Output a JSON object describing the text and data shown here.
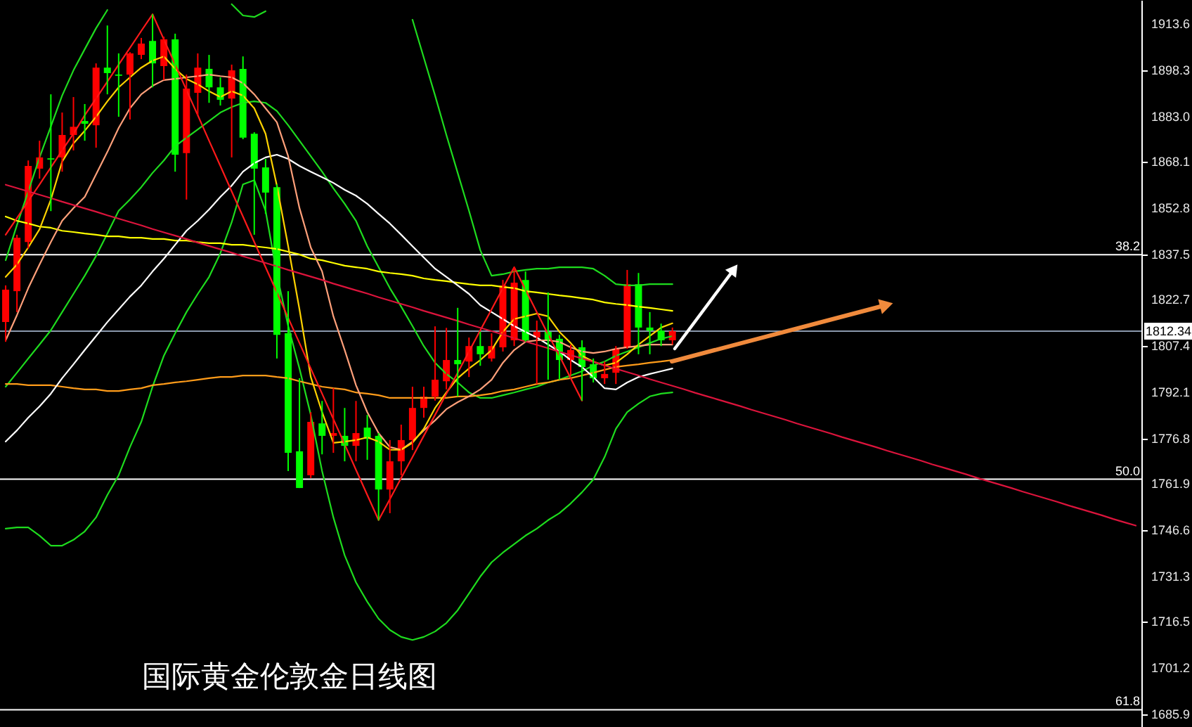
{
  "chart_data": {
    "type": "candlestick",
    "title": "国际黄金伦敦金日线图",
    "categories": [
      null,
      null,
      null,
      null,
      null,
      null,
      null,
      null,
      null,
      null,
      null,
      null,
      null,
      null,
      null,
      null,
      null,
      null,
      null,
      null,
      null,
      null,
      null,
      null,
      null,
      null,
      null,
      null,
      null,
      null,
      null,
      null,
      null,
      null,
      null,
      null,
      null,
      null,
      null,
      null,
      null,
      null,
      null,
      null,
      null,
      null,
      null,
      null,
      null,
      null,
      null,
      null,
      null,
      null,
      null,
      null,
      null,
      null,
      null,
      null,
      null,
      null,
      null,
      null,
      null,
      null,
      null,
      null,
      null,
      null,
      null,
      null,
      null,
      null,
      null,
      null,
      null,
      null,
      null,
      null,
      null,
      null,
      null,
      null,
      null,
      null,
      null,
      null,
      null,
      null,
      null,
      null,
      null,
      null,
      null,
      null,
      null,
      null,
      null,
      null,
      null
    ],
    "ohlc": [
      [
        1815.3,
        1827.4,
        1808.8,
        1826.0
      ],
      [
        1825.5,
        1844.1,
        1818.6,
        1843.1
      ],
      [
        1841.7,
        1868.6,
        1839.5,
        1866.8
      ],
      [
        1865.9,
        1875.1,
        1862.6,
        1869.6
      ],
      [
        1869.3,
        1890.4,
        1851.9,
        1868.9
      ],
      [
        1869.6,
        1884.4,
        1864.9,
        1877.0
      ],
      [
        1877.0,
        1889.5,
        1871.9,
        1879.7
      ],
      [
        1881.6,
        1887.2,
        1875.1,
        1880.7
      ],
      [
        1880.2,
        1900.6,
        1872.8,
        1899.2
      ],
      [
        1899.2,
        1913.1,
        1890.4,
        1897.4
      ],
      [
        1896.9,
        1903.9,
        1883.0,
        1896.5
      ],
      [
        1896.9,
        1904.3,
        1882.1,
        1903.9
      ],
      [
        1903.4,
        1909.0,
        1902.0,
        1907.1
      ],
      [
        1908.0,
        1916.8,
        1892.7,
        1900.6
      ],
      [
        1899.7,
        1909.4,
        1895.1,
        1908.5
      ],
      [
        1908.5,
        1910.4,
        1864.9,
        1870.5
      ],
      [
        1871.0,
        1896.9,
        1855.7,
        1892.3
      ],
      [
        1890.9,
        1903.9,
        1883.5,
        1899.2
      ],
      [
        1898.8,
        1903.4,
        1887.6,
        1892.7
      ],
      [
        1892.7,
        1896.0,
        1886.7,
        1888.6
      ],
      [
        1889.0,
        1900.2,
        1869.6,
        1898.3
      ],
      [
        1898.8,
        1902.9,
        1875.6,
        1876.1
      ],
      [
        1877.4,
        1877.9,
        1844.1,
        1865.9
      ],
      [
        1866.3,
        1869.1,
        1851.0,
        1858.0
      ],
      [
        1859.8,
        1860.7,
        1803.3,
        1811.1
      ],
      [
        1811.6,
        1825.5,
        1766.2,
        1772.2
      ],
      [
        1772.7,
        1796.8,
        1760.6,
        1760.6
      ],
      [
        1764.8,
        1785.6,
        1763.9,
        1782.4
      ],
      [
        1781.9,
        1789.3,
        1771.7,
        1777.8
      ],
      [
        1777.8,
        1793.5,
        1772.2,
        1778.7
      ],
      [
        1777.8,
        1787.0,
        1769.4,
        1774.5
      ],
      [
        1774.5,
        1789.3,
        1769.4,
        1778.7
      ],
      [
        1780.5,
        1784.7,
        1769.9,
        1776.8
      ],
      [
        1777.8,
        1778.7,
        1749.9,
        1760.1
      ],
      [
        1760.1,
        1776.4,
        1752.3,
        1769.4
      ],
      [
        1769.4,
        1781.5,
        1764.8,
        1776.4
      ],
      [
        1776.4,
        1794.0,
        1773.1,
        1787.0
      ],
      [
        1787.0,
        1794.0,
        1783.8,
        1790.7
      ],
      [
        1790.7,
        1813.9,
        1789.4,
        1796.3
      ],
      [
        1795.8,
        1813.4,
        1793.1,
        1802.8
      ],
      [
        1802.8,
        1820.0,
        1790.8,
        1801.4
      ],
      [
        1802.3,
        1810.2,
        1797.2,
        1807.4
      ],
      [
        1807.4,
        1812.1,
        1800.9,
        1804.7
      ],
      [
        1803.3,
        1811.6,
        1802.3,
        1807.4
      ],
      [
        1807.0,
        1829.2,
        1805.6,
        1827.4
      ],
      [
        1809.3,
        1833.4,
        1807.4,
        1828.3
      ],
      [
        1829.2,
        1832.0,
        1808.8,
        1809.3
      ],
      [
        1810.2,
        1815.8,
        1794.9,
        1812.1
      ],
      [
        1812.1,
        1825.1,
        1796.3,
        1809.3
      ],
      [
        1809.8,
        1811.1,
        1796.3,
        1802.8
      ],
      [
        1802.8,
        1807.9,
        1797.7,
        1806.1
      ],
      [
        1807.0,
        1809.3,
        1789.4,
        1800.5
      ],
      [
        1801.4,
        1803.3,
        1795.4,
        1796.8
      ],
      [
        1796.8,
        1802.3,
        1794.9,
        1798.2
      ],
      [
        1798.6,
        1807.4,
        1794.9,
        1806.5
      ],
      [
        1807.0,
        1832.5,
        1806.5,
        1827.8
      ],
      [
        1827.8,
        1831.5,
        1804.7,
        1813.5
      ],
      [
        1813.5,
        1818.6,
        1804.7,
        1812.5
      ],
      [
        1812.5,
        1814.8,
        1807.4,
        1809.3
      ],
      [
        1809.3,
        1813.5,
        1807.9,
        1812.3
      ],
      null,
      null,
      null,
      null,
      null,
      null,
      null,
      null,
      null,
      null,
      null,
      null,
      null,
      null,
      null,
      null,
      null,
      null,
      null,
      null,
      null,
      null,
      null,
      null,
      null,
      null,
      null,
      null,
      null,
      null,
      null,
      null,
      null,
      null,
      null,
      null,
      null,
      null,
      null,
      null,
      null
    ],
    "colors": [
      "#ff0000",
      "#ff0000",
      "#ff0000",
      "#ff0000",
      "#00ff00",
      "#ff0000",
      "#ff0000",
      "#00ff00",
      "#ff0000",
      "#00ff00",
      "#00ff00",
      "#ff0000",
      "#ff0000",
      "#00ff00",
      "#ff0000",
      "#00ff00",
      "#ff0000",
      "#ff0000",
      "#00ff00",
      "#00ff00",
      "#ff0000",
      "#00ff00",
      "#00ff00",
      "#00ff00",
      "#00ff00",
      "#00ff00",
      "#00ff00",
      "#ff0000",
      "#00ff00",
      "#ff0000",
      "#00ff00",
      "#ff0000",
      "#00ff00",
      "#00ff00",
      "#ff0000",
      "#ff0000",
      "#ff0000",
      "#ff0000",
      "#ff0000",
      "#ff0000",
      "#00ff00",
      "#ff0000",
      "#00ff00",
      "#ff0000",
      "#ff0000",
      "#ff0000",
      "#00ff00",
      "#ff0000",
      "#00ff00",
      "#00ff00",
      "#ff0000",
      "#00ff00",
      "#00ff00",
      "#ff0000",
      "#ff0000",
      "#ff0000",
      "#00ff00",
      "#00ff00",
      "#00ff00",
      "#ff0000",
      null,
      null,
      null,
      null,
      null,
      null,
      null,
      null,
      null,
      null,
      null,
      null,
      null,
      null,
      null,
      null,
      null,
      null,
      null,
      null,
      null,
      null,
      null,
      null,
      null,
      null,
      null,
      null,
      null,
      null,
      null,
      null,
      null,
      null,
      null,
      null,
      null,
      null,
      null,
      null,
      null
    ],
    "series": [
      {
        "type": "line",
        "color": "#1edc1e",
        "values": [
          1835.7,
          1847.3,
          1858.4,
          1869.6,
          1879.8,
          1890.0,
          1898.3,
          1905.3,
          1912.2,
          1918.2,
          null,
          null,
          null,
          null,
          null,
          null,
          null,
          null,
          null,
          null,
          1920.1,
          1916.4,
          1915.9,
          1917.8,
          null,
          null,
          null,
          null,
          null,
          null,
          null,
          null,
          null,
          null,
          null,
          null,
          1915.0,
          1902.5,
          1890.0,
          1877.0,
          1864.5,
          1852.0,
          1839.0,
          1830.6,
          1831.1,
          1832.0,
          1832.5,
          1832.9,
          1832.9,
          1833.4,
          1833.4,
          1833.4,
          1832.9,
          1830.6,
          1827.8,
          1827.4,
          1827.4,
          1827.8,
          1827.8,
          1827.8,
          null,
          null,
          null,
          null,
          null,
          null,
          null,
          null,
          null,
          null,
          null,
          null,
          null,
          null,
          null,
          null,
          null,
          null,
          null,
          null,
          null,
          null,
          null,
          null,
          null,
          null,
          null,
          null,
          null,
          null,
          null,
          null,
          null,
          null,
          null,
          null,
          null,
          null,
          null,
          null,
          null
        ]
      },
      {
        "type": "line",
        "color": "#1edc1e",
        "values": [
          1794.0,
          1798.6,
          1803.3,
          1807.9,
          1812.6,
          1818.6,
          1824.6,
          1830.6,
          1837.1,
          1844.5,
          1852.0,
          1855.7,
          1859.8,
          1864.5,
          1868.6,
          1873.3,
          1876.1,
          1878.8,
          1881.6,
          1884.4,
          1886.2,
          1887.6,
          1888.1,
          1887.6,
          1884.9,
          1880.2,
          1875.1,
          1870.0,
          1864.9,
          1859.4,
          1854.3,
          1848.7,
          1840.3,
          1833.4,
          1826.5,
          1820.4,
          1814.0,
          1807.4,
          1801.9,
          1798.2,
          1795.4,
          1792.1,
          1790.3,
          1790.3,
          1791.2,
          1792.1,
          1793.1,
          1794.0,
          1795.4,
          1796.3,
          1797.7,
          1799.1,
          1801.0,
          1802.3,
          1804.2,
          1805.6,
          1807.0,
          1808.4,
          1809.8,
          1810.7,
          null,
          null,
          null,
          null,
          null,
          null,
          null,
          null,
          null,
          null,
          null,
          null,
          null,
          null,
          null,
          null,
          null,
          null,
          null,
          null,
          null,
          null,
          null,
          null,
          null,
          null,
          null,
          null,
          null,
          null,
          null,
          null,
          null,
          null,
          null,
          null,
          null,
          null,
          null,
          null,
          null
        ]
      },
      {
        "type": "line",
        "color": "#1edc1e",
        "values": [
          1747.2,
          1747.6,
          1747.6,
          1744.9,
          1741.6,
          1741.6,
          1743.5,
          1746.3,
          1750.9,
          1758.3,
          1764.8,
          1774.1,
          1782.4,
          1794.0,
          1804.2,
          1811.6,
          1818.6,
          1824.6,
          1830.2,
          1838.0,
          1848.2,
          1860.7,
          1862.1,
          1852.0,
          1831.1,
          1814.0,
          1800.0,
          1784.7,
          1766.2,
          1750.9,
          1738.4,
          1729.5,
          1723.1,
          1717.5,
          1713.8,
          1711.5,
          1710.5,
          1711.5,
          1713.3,
          1716.1,
          1720.3,
          1725.8,
          1731.4,
          1736.1,
          1739.3,
          1742.1,
          1744.9,
          1747.2,
          1750.0,
          1752.3,
          1755.5,
          1759.2,
          1763.4,
          1770.8,
          1780.1,
          1785.6,
          1788.4,
          1790.8,
          1791.7,
          1792.1,
          null,
          null,
          null,
          null,
          null,
          null,
          null,
          null,
          null,
          null,
          null,
          null,
          null,
          null,
          null,
          null,
          null,
          null,
          null,
          null,
          null,
          null,
          null,
          null,
          null,
          null,
          null,
          null,
          null,
          null,
          null,
          null,
          null,
          null,
          null,
          null,
          null,
          null,
          null,
          null,
          null
        ]
      },
      {
        "type": "line",
        "color": "#ff9c1a",
        "values": [
          1794.9,
          1794.9,
          1794.5,
          1794.5,
          1794.5,
          1794.0,
          1793.5,
          1793.1,
          1793.1,
          1792.6,
          1792.6,
          1793.1,
          1793.5,
          1794.5,
          1794.9,
          1795.4,
          1795.8,
          1796.3,
          1796.8,
          1797.2,
          1797.2,
          1797.7,
          1797.7,
          1797.7,
          1797.2,
          1796.8,
          1795.8,
          1794.9,
          1794.0,
          1793.5,
          1793.1,
          1792.1,
          1791.7,
          1791.2,
          1790.3,
          1790.3,
          1790.3,
          1790.3,
          1790.3,
          1790.3,
          1790.8,
          1790.8,
          1791.2,
          1791.7,
          1792.6,
          1793.1,
          1794.0,
          1794.9,
          1795.4,
          1796.3,
          1796.8,
          1797.7,
          1798.6,
          1799.6,
          1800.5,
          1801.0,
          1801.4,
          1801.9,
          1802.3,
          1802.8,
          null,
          null,
          null,
          null,
          null,
          null,
          null,
          null,
          null,
          null,
          null,
          null,
          null,
          null,
          null,
          null,
          null,
          null,
          null,
          null,
          null,
          null,
          null,
          null,
          null,
          null,
          null,
          null,
          null,
          null,
          null,
          null,
          null,
          null,
          null,
          null,
          null,
          null,
          null,
          null,
          null
        ]
      },
      {
        "type": "line",
        "color": "#ffff00",
        "values": [
          1850.1,
          1848.7,
          1847.8,
          1846.8,
          1846.4,
          1845.4,
          1845.0,
          1844.5,
          1844.1,
          1843.6,
          1843.6,
          1843.1,
          1843.1,
          1842.7,
          1842.7,
          1842.2,
          1842.2,
          1841.7,
          1841.3,
          1841.3,
          1840.8,
          1840.8,
          1840.3,
          1839.9,
          1839.4,
          1838.5,
          1837.6,
          1836.2,
          1835.7,
          1834.8,
          1833.9,
          1833.4,
          1832.9,
          1832.0,
          1831.5,
          1831.1,
          1830.6,
          1829.7,
          1829.2,
          1828.8,
          1828.3,
          1827.8,
          1827.4,
          1827.4,
          1826.9,
          1826.5,
          1825.5,
          1825.1,
          1824.6,
          1824.1,
          1823.7,
          1823.2,
          1822.7,
          1821.8,
          1821.3,
          1820.9,
          1820.4,
          1820.0,
          1819.5,
          1819.0,
          null,
          null,
          null,
          null,
          null,
          null,
          null,
          null,
          null,
          null,
          null,
          null,
          null,
          null,
          null,
          null,
          null,
          null,
          null,
          null,
          null,
          null,
          null,
          null,
          null,
          null,
          null,
          null,
          null,
          null,
          null,
          null,
          null,
          null,
          null,
          null,
          null,
          null,
          null,
          null,
          null
        ]
      },
      {
        "type": "line",
        "color": "#ffffff",
        "values": [
          1775.9,
          1779.6,
          1783.8,
          1787.5,
          1791.7,
          1796.8,
          1801.4,
          1806.1,
          1810.7,
          1815.3,
          1819.5,
          1823.7,
          1827.4,
          1832.0,
          1836.2,
          1840.8,
          1845.4,
          1848.7,
          1852.4,
          1856.6,
          1860.3,
          1864.9,
          1867.7,
          1869.6,
          1870.5,
          1869.1,
          1866.8,
          1864.9,
          1863.1,
          1861.2,
          1858.9,
          1857.0,
          1854.3,
          1851.0,
          1847.8,
          1844.1,
          1840.3,
          1836.6,
          1832.9,
          1830.2,
          1827.4,
          1824.6,
          1820.9,
          1818.6,
          1816.3,
          1814.0,
          1812.1,
          1810.2,
          1807.9,
          1805.6,
          1802.8,
          1800.5,
          1797.2,
          1793.5,
          1793.1,
          1795.4,
          1797.2,
          1798.2,
          1799.1,
          1800.0,
          null,
          null,
          null,
          null,
          null,
          null,
          null,
          null,
          null,
          null,
          null,
          null,
          null,
          null,
          null,
          null,
          null,
          null,
          null,
          null,
          null,
          null,
          null,
          null,
          null,
          null,
          null,
          null,
          null,
          null,
          null,
          null,
          null,
          null,
          null,
          null,
          null,
          null,
          null,
          null,
          null
        ]
      },
      {
        "type": "line",
        "color": "#ffa07a",
        "values": [
          1809.3,
          1817.6,
          1826.5,
          1834.3,
          1841.7,
          1848.7,
          1852.9,
          1856.6,
          1864.0,
          1871.4,
          1879.3,
          1885.8,
          1890.4,
          1893.2,
          1895.1,
          1895.5,
          1896.0,
          1896.4,
          1896.9,
          1896.4,
          1896.0,
          1894.1,
          1890.4,
          1885.8,
          1881.2,
          1870.0,
          1852.9,
          1839.9,
          1832.0,
          1817.2,
          1806.1,
          1794.5,
          1785.6,
          1778.7,
          1774.1,
          1773.2,
          1775.9,
          1779.6,
          1782.9,
          1786.6,
          1788.9,
          1790.8,
          1793.1,
          1796.3,
          1801.9,
          1806.1,
          1808.8,
          1809.3,
          1809.3,
          1808.8,
          1807.0,
          1805.6,
          1805.1,
          1805.6,
          1806.5,
          1807.0,
          1807.4,
          1807.9,
          1807.9,
          1807.9,
          null,
          null,
          null,
          null,
          null,
          null,
          null,
          null,
          null,
          null,
          null,
          null,
          null,
          null,
          null,
          null,
          null,
          null,
          null,
          null,
          null,
          null,
          null,
          null,
          null,
          null,
          null,
          null,
          null,
          null,
          null,
          null,
          null,
          null,
          null,
          null,
          null,
          null,
          null,
          null,
          null
        ]
      },
      {
        "type": "line",
        "color": "#ffd200",
        "values": [
          1830.2,
          1834.3,
          1839.9,
          1845.9,
          1855.7,
          1868.2,
          1874.2,
          1878.4,
          1883.0,
          1888.1,
          1892.7,
          1896.0,
          1899.2,
          1901.5,
          1902.9,
          1898.8,
          1895.5,
          1893.7,
          1891.4,
          1889.5,
          1891.4,
          1890.0,
          1885.8,
          1877.4,
          1860.3,
          1840.3,
          1819.5,
          1797.2,
          1785.6,
          1775.5,
          1775.9,
          1776.4,
          1777.3,
          1775.9,
          1773.2,
          1773.2,
          1775.5,
          1780.1,
          1787.0,
          1792.1,
          1796.8,
          1800.0,
          1802.8,
          1806.1,
          1812.1,
          1816.3,
          1817.2,
          1818.1,
          1817.2,
          1812.1,
          1808.4,
          1804.2,
          1802.3,
          1801.0,
          1801.9,
          1804.7,
          1807.9,
          1810.7,
          1813.5,
          1814.9,
          null,
          null,
          null,
          null,
          null,
          null,
          null,
          null,
          null,
          null,
          null,
          null,
          null,
          null,
          null,
          null,
          null,
          null,
          null,
          null,
          null,
          null,
          null,
          null,
          null,
          null,
          null,
          null,
          null,
          null,
          null,
          null,
          null,
          null,
          null,
          null,
          null,
          null,
          null,
          null,
          null
        ]
      },
      {
        "type": "line",
        "color": "#ff1a1a",
        "values": [
          1844.1,
          1849.6,
          1855.2,
          1860.7,
          1866.3,
          1871.9,
          1877.4,
          1883.5,
          1889.0,
          1894.6,
          1900.2,
          1905.7,
          1911.3,
          1916.8,
          1908.5,
          1900.2,
          1891.8,
          1883.5,
          1875.1,
          1866.8,
          1858.4,
          1850.1,
          1841.7,
          1833.4,
          1825.1,
          1816.7,
          1808.4,
          1800.0,
          1791.7,
          1783.3,
          1775.0,
          1766.6,
          1758.3,
          1750.0,
          1756.9,
          1763.9,
          1770.8,
          1777.8,
          1784.7,
          1791.7,
          1798.6,
          1805.6,
          1812.6,
          1819.5,
          1826.5,
          1833.4,
          1826.0,
          1818.6,
          1811.2,
          1804.2,
          1796.8,
          1789.4,
          null,
          null,
          null,
          null,
          null,
          null,
          null,
          null,
          null,
          null,
          null,
          null,
          null,
          null,
          null,
          null,
          null,
          null,
          null,
          null,
          null,
          null,
          null,
          null,
          null,
          null,
          null,
          null,
          null,
          null,
          null,
          null,
          null,
          null,
          null,
          null,
          null,
          null,
          null,
          null,
          null,
          null,
          null,
          null,
          null,
          null,
          null,
          null,
          null
        ]
      },
      {
        "type": "line",
        "color": "#dc143c",
        "values": [
          1860.6,
          1859.5,
          1858.4,
          1857.3,
          1856.2,
          1855.0,
          1853.9,
          1852.8,
          1851.7,
          1850.5,
          1849.4,
          1848.3,
          1847.2,
          1846.0,
          1844.9,
          1843.8,
          1842.7,
          1841.5,
          1840.4,
          1839.3,
          1838.2,
          1837.0,
          1835.9,
          1834.8,
          1833.7,
          1832.5,
          1831.4,
          1830.3,
          1829.2,
          1828.0,
          1826.9,
          1825.8,
          1824.7,
          1823.5,
          1822.4,
          1821.3,
          1820.2,
          1819.0,
          1817.9,
          1816.8,
          1815.7,
          1814.5,
          1813.4,
          1812.3,
          1811.2,
          1810.0,
          1808.9,
          1807.8,
          1806.7,
          1805.5,
          1804.4,
          1803.3,
          1802.2,
          1801.0,
          1799.9,
          1798.8,
          1797.7,
          1796.5,
          1795.4,
          1794.3,
          1793.2,
          1792.0,
          1790.9,
          1789.8,
          1788.7,
          1787.6,
          1786.4,
          1785.3,
          1784.2,
          1783.1,
          1781.9,
          1780.8,
          1779.7,
          1778.6,
          1777.4,
          1776.3,
          1775.2,
          1774.1,
          1772.9,
          1771.8,
          1770.7,
          1769.6,
          1768.4,
          1767.3,
          1766.2,
          1765.1,
          1763.9,
          1762.8,
          1761.7,
          1760.6,
          1759.4,
          1758.3,
          1757.2,
          1756.1,
          1754.9,
          1753.8,
          1752.7,
          1751.6,
          1750.4,
          1749.3,
          1748.2
        ]
      }
    ],
    "ylim": [
      1681.8,
      1921.5
    ],
    "yticks": [
      1913.6,
      1898.3,
      {
        "value": 1883,
        "label": "1883.0"
      },
      1868.1,
      1852.8,
      1837.5,
      1822.7,
      1807.4,
      1792.1,
      1776.8,
      1761.9,
      1746.6,
      1731.3,
      1716.5,
      1701.2,
      1685.9
    ],
    "ref_lines": [
      {
        "axis": "y",
        "value": 1837.5,
        "color": "#ffffff"
      },
      {
        "axis": "y",
        "value": 1763.5,
        "color": "#ffffff"
      },
      {
        "axis": "y",
        "value": 1687.5,
        "color": "#ffffff"
      },
      {
        "axis": "y",
        "value": 1812.34,
        "label": "1812.34",
        "color": "#8a98ac"
      }
    ],
    "annotations": [
      {
        "text": "38.2",
        "y": 1837.5
      },
      {
        "text": "50.0",
        "y": 1763.5
      },
      {
        "text": "61.8",
        "y": 1687.5
      }
    ],
    "tick_labels": "y"
  }
}
